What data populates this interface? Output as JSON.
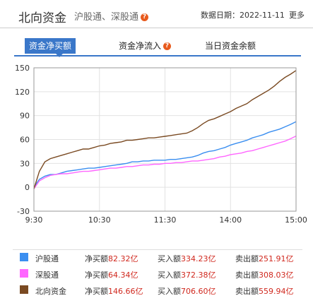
{
  "header": {
    "title": "北向资金",
    "subtitle": "沪股通、深股通",
    "help": "?",
    "date_label": "数据日期：",
    "date": "2022-11-11",
    "more": "更多"
  },
  "tabs": [
    {
      "label": "资金净买额",
      "active": true
    },
    {
      "label": "资金净流入",
      "active": false,
      "help": "?"
    },
    {
      "label": "当日资金余额",
      "active": false
    }
  ],
  "chart_data": {
    "type": "line",
    "x_ticks": [
      "9:30",
      "10:30",
      "11:30",
      "14:00",
      "15:00"
    ],
    "y_ticks": [
      "150",
      "120",
      "90",
      "60",
      "30",
      "0",
      "-30"
    ],
    "ylim": [
      -30,
      150
    ],
    "x": [
      0,
      5,
      10,
      15,
      20,
      25,
      30,
      35,
      40,
      45,
      50,
      55,
      60,
      65,
      70,
      75,
      80,
      85,
      90,
      95,
      100,
      105,
      110,
      115,
      120,
      125,
      130,
      135,
      140,
      145,
      150,
      155,
      160,
      165,
      170,
      175,
      180,
      185,
      190,
      195,
      200,
      205,
      210,
      215,
      220,
      225,
      230,
      235,
      240
    ],
    "series": [
      {
        "name": "沪股通",
        "color": "#3a8ef0",
        "values": [
          0,
          10,
          14,
          16,
          16,
          18,
          20,
          21,
          22,
          23,
          24,
          24,
          25,
          26,
          27,
          28,
          29,
          30,
          32,
          32,
          33,
          33,
          34,
          34,
          34,
          35,
          35,
          36,
          37,
          38,
          40,
          43,
          45,
          46,
          48,
          50,
          53,
          55,
          57,
          59,
          62,
          64,
          66,
          69,
          71,
          73,
          76,
          79,
          82.32
        ]
      },
      {
        "name": "深股通",
        "color": "#ff66ff",
        "values": [
          -2,
          8,
          12,
          15,
          16,
          17,
          17,
          18,
          19,
          20,
          20,
          21,
          22,
          23,
          24,
          24,
          25,
          26,
          26,
          27,
          28,
          28,
          29,
          29,
          30,
          30,
          31,
          31,
          32,
          33,
          33,
          34,
          35,
          36,
          38,
          39,
          41,
          42,
          43,
          45,
          46,
          48,
          50,
          52,
          54,
          56,
          58,
          61,
          64.34
        ]
      },
      {
        "name": "北向资金",
        "color": "#7a4a22",
        "values": [
          -2,
          20,
          32,
          36,
          38,
          40,
          42,
          44,
          46,
          48,
          48,
          50,
          52,
          53,
          55,
          56,
          57,
          59,
          59,
          60,
          61,
          62,
          62,
          63,
          64,
          65,
          66,
          67,
          68,
          71,
          75,
          80,
          84,
          86,
          89,
          92,
          95,
          99,
          102,
          105,
          110,
          114,
          118,
          122,
          127,
          133,
          138,
          142,
          146.66
        ]
      }
    ]
  },
  "legend": [
    {
      "name": "沪股通",
      "color": "#3a8ef0",
      "net_label": "净买额",
      "net": "82.32亿",
      "buy_label": "买入额",
      "buy": "334.23亿",
      "sell_label": "卖出额",
      "sell": "251.91亿"
    },
    {
      "name": "深股通",
      "color": "#ff66ff",
      "net_label": "净买额",
      "net": "64.34亿",
      "buy_label": "买入额",
      "buy": "372.38亿",
      "sell_label": "卖出额",
      "sell": "308.03亿"
    },
    {
      "name": "北向资金",
      "color": "#7a4a22",
      "net_label": "净买额",
      "net": "146.66亿",
      "buy_label": "买入额",
      "buy": "706.60亿",
      "sell_label": "卖出额",
      "sell": "559.94亿"
    }
  ]
}
